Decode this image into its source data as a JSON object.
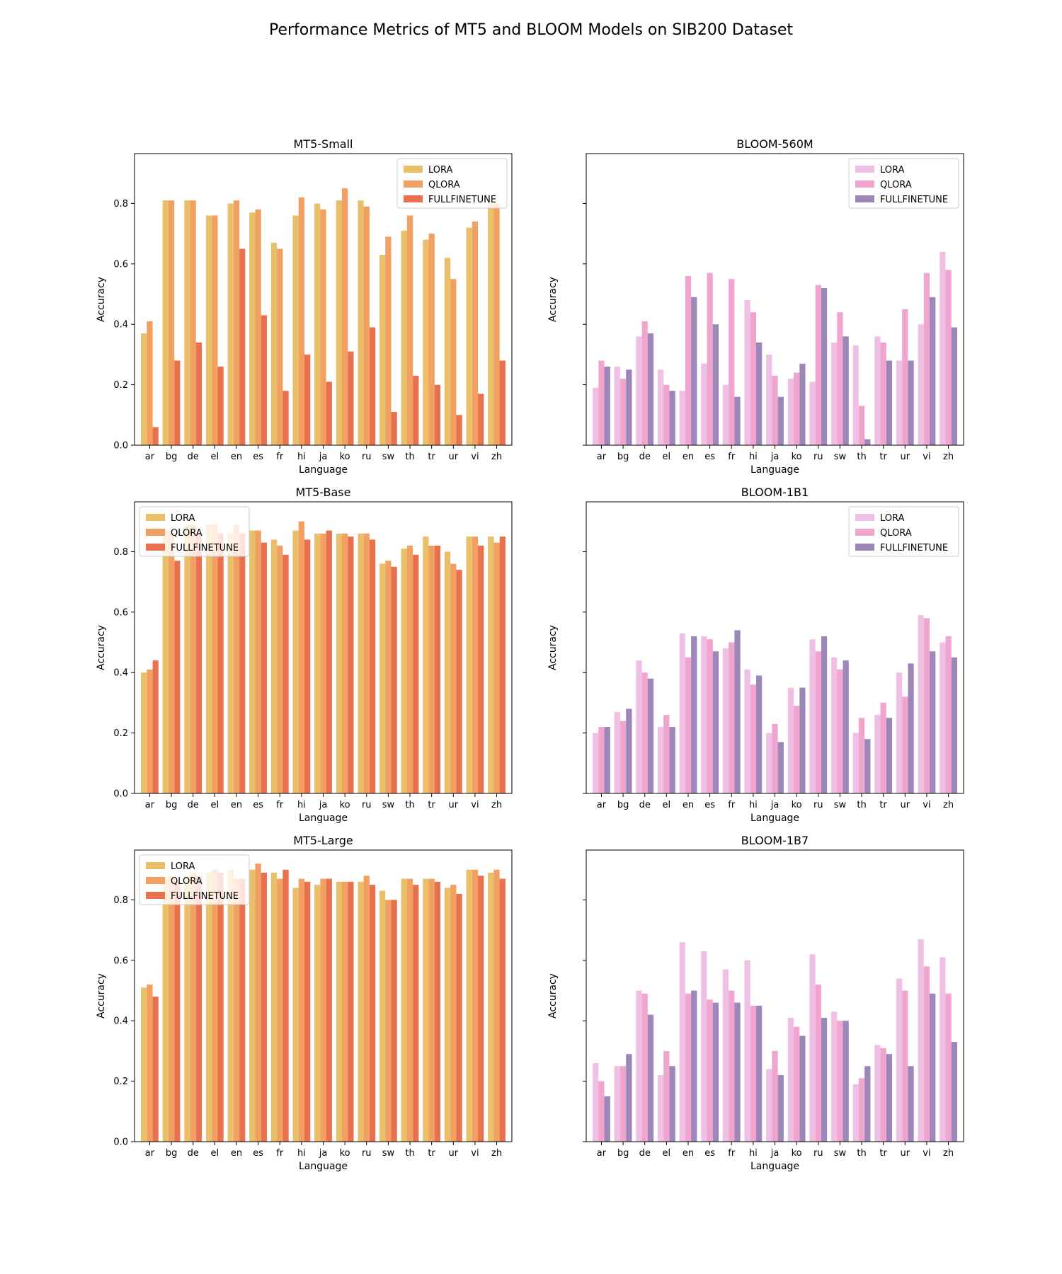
{
  "figure": {
    "title": "Performance Metrics of MT5 and BLOOM Models on SIB200 Dataset"
  },
  "chart_data": [
    {
      "type": "bar",
      "title": "MT5-Small",
      "xlabel": "Language",
      "ylabel": "Accuracy",
      "ylim": [
        0,
        0.965
      ],
      "yticks": [
        "0.0",
        "0.2",
        "0.4",
        "0.6",
        "0.8"
      ],
      "show_yticklabels": true,
      "legend_position": "upper right",
      "categories": [
        "ar",
        "bg",
        "de",
        "el",
        "en",
        "es",
        "fr",
        "hi",
        "ja",
        "ko",
        "ru",
        "sw",
        "th",
        "tr",
        "ur",
        "vi",
        "zh"
      ],
      "series": [
        {
          "name": "LORA",
          "color": "#e9bf6a",
          "values": [
            0.37,
            0.81,
            0.81,
            0.76,
            0.8,
            0.77,
            0.67,
            0.76,
            0.8,
            0.81,
            0.81,
            0.63,
            0.71,
            0.68,
            0.62,
            0.72,
            0.81
          ]
        },
        {
          "name": "QLORA",
          "color": "#f2a062",
          "values": [
            0.41,
            0.81,
            0.81,
            0.76,
            0.81,
            0.78,
            0.65,
            0.82,
            0.78,
            0.85,
            0.79,
            0.69,
            0.76,
            0.7,
            0.55,
            0.74,
            0.8
          ]
        },
        {
          "name": "FULLFINETUNE",
          "color": "#e8724f",
          "values": [
            0.06,
            0.28,
            0.34,
            0.26,
            0.65,
            0.43,
            0.18,
            0.3,
            0.21,
            0.31,
            0.39,
            0.11,
            0.23,
            0.2,
            0.1,
            0.17,
            0.28
          ]
        }
      ]
    },
    {
      "type": "bar",
      "title": "BLOOM-560M",
      "xlabel": "Language",
      "ylabel": "Accuracy",
      "ylim": [
        0,
        0.965
      ],
      "yticks": [
        "0.0",
        "0.2",
        "0.4",
        "0.6",
        "0.8"
      ],
      "show_yticklabels": false,
      "legend_position": "upper right",
      "categories": [
        "ar",
        "bg",
        "de",
        "el",
        "en",
        "es",
        "fr",
        "hi",
        "ja",
        "ko",
        "ru",
        "sw",
        "th",
        "tr",
        "ur",
        "vi",
        "zh"
      ],
      "series": [
        {
          "name": "LORA",
          "color": "#efc0e3",
          "values": [
            0.19,
            0.26,
            0.36,
            0.25,
            0.18,
            0.27,
            0.2,
            0.48,
            0.3,
            0.22,
            0.21,
            0.34,
            0.33,
            0.36,
            0.28,
            0.4,
            0.64
          ]
        },
        {
          "name": "QLORA",
          "color": "#f0a5cf",
          "values": [
            0.28,
            0.22,
            0.41,
            0.2,
            0.56,
            0.57,
            0.55,
            0.44,
            0.23,
            0.24,
            0.53,
            0.44,
            0.13,
            0.34,
            0.45,
            0.57,
            0.58
          ]
        },
        {
          "name": "FULLFINETUNE",
          "color": "#9d87b8",
          "values": [
            0.26,
            0.25,
            0.37,
            0.18,
            0.49,
            0.4,
            0.16,
            0.34,
            0.16,
            0.27,
            0.52,
            0.36,
            0.02,
            0.28,
            0.28,
            0.49,
            0.39
          ]
        }
      ]
    },
    {
      "type": "bar",
      "title": "MT5-Base",
      "xlabel": "Language",
      "ylabel": "Accuracy",
      "ylim": [
        0,
        0.965
      ],
      "yticks": [
        "0.0",
        "0.2",
        "0.4",
        "0.6",
        "0.8"
      ],
      "show_yticklabels": true,
      "legend_position": "upper left",
      "categories": [
        "ar",
        "bg",
        "de",
        "el",
        "en",
        "es",
        "fr",
        "hi",
        "ja",
        "ko",
        "ru",
        "sw",
        "th",
        "tr",
        "ur",
        "vi",
        "zh"
      ],
      "series": [
        {
          "name": "LORA",
          "color": "#e9bf6a",
          "values": [
            0.4,
            0.87,
            0.89,
            0.89,
            0.86,
            0.87,
            0.84,
            0.87,
            0.86,
            0.86,
            0.86,
            0.76,
            0.81,
            0.85,
            0.8,
            0.85,
            0.85
          ]
        },
        {
          "name": "QLORA",
          "color": "#f2a062",
          "values": [
            0.41,
            0.87,
            0.89,
            0.89,
            0.89,
            0.87,
            0.82,
            0.9,
            0.86,
            0.86,
            0.86,
            0.77,
            0.82,
            0.82,
            0.76,
            0.85,
            0.83
          ]
        },
        {
          "name": "FULLFINETUNE",
          "color": "#e8724f",
          "values": [
            0.44,
            0.77,
            0.86,
            0.86,
            0.86,
            0.83,
            0.79,
            0.84,
            0.87,
            0.85,
            0.84,
            0.75,
            0.79,
            0.82,
            0.74,
            0.82,
            0.85
          ]
        }
      ]
    },
    {
      "type": "bar",
      "title": "BLOOM-1B1",
      "xlabel": "Language",
      "ylabel": "Accuracy",
      "ylim": [
        0,
        0.965
      ],
      "yticks": [
        "0.0",
        "0.2",
        "0.4",
        "0.6",
        "0.8"
      ],
      "show_yticklabels": false,
      "legend_position": "upper right",
      "categories": [
        "ar",
        "bg",
        "de",
        "el",
        "en",
        "es",
        "fr",
        "hi",
        "ja",
        "ko",
        "ru",
        "sw",
        "th",
        "tr",
        "ur",
        "vi",
        "zh"
      ],
      "series": [
        {
          "name": "LORA",
          "color": "#efc0e3",
          "values": [
            0.2,
            0.27,
            0.44,
            0.22,
            0.53,
            0.52,
            0.48,
            0.41,
            0.2,
            0.35,
            0.51,
            0.45,
            0.2,
            0.26,
            0.4,
            0.59,
            0.5
          ]
        },
        {
          "name": "QLORA",
          "color": "#f0a5cf",
          "values": [
            0.22,
            0.24,
            0.4,
            0.26,
            0.45,
            0.51,
            0.5,
            0.36,
            0.23,
            0.29,
            0.47,
            0.41,
            0.25,
            0.3,
            0.32,
            0.58,
            0.52
          ]
        },
        {
          "name": "FULLFINETUNE",
          "color": "#9d87b8",
          "values": [
            0.22,
            0.28,
            0.38,
            0.22,
            0.52,
            0.47,
            0.54,
            0.39,
            0.17,
            0.35,
            0.52,
            0.44,
            0.18,
            0.25,
            0.43,
            0.47,
            0.45
          ]
        }
      ]
    },
    {
      "type": "bar",
      "title": "MT5-Large",
      "xlabel": "Language",
      "ylabel": "Accuracy",
      "ylim": [
        0,
        0.965
      ],
      "yticks": [
        "0.0",
        "0.2",
        "0.4",
        "0.6",
        "0.8"
      ],
      "show_yticklabels": true,
      "legend_position": "upper left",
      "categories": [
        "ar",
        "bg",
        "de",
        "el",
        "en",
        "es",
        "fr",
        "hi",
        "ja",
        "ko",
        "ru",
        "sw",
        "th",
        "tr",
        "ur",
        "vi",
        "zh"
      ],
      "series": [
        {
          "name": "LORA",
          "color": "#e9bf6a",
          "values": [
            0.51,
            0.87,
            0.88,
            0.89,
            0.9,
            0.9,
            0.89,
            0.84,
            0.85,
            0.86,
            0.86,
            0.83,
            0.87,
            0.87,
            0.84,
            0.9,
            0.89
          ]
        },
        {
          "name": "QLORA",
          "color": "#f2a062",
          "values": [
            0.52,
            0.88,
            0.89,
            0.9,
            0.87,
            0.92,
            0.87,
            0.87,
            0.87,
            0.86,
            0.88,
            0.8,
            0.87,
            0.87,
            0.85,
            0.9,
            0.9
          ]
        },
        {
          "name": "FULLFINETUNE",
          "color": "#e8724f",
          "values": [
            0.48,
            0.86,
            0.88,
            0.89,
            0.87,
            0.89,
            0.9,
            0.86,
            0.87,
            0.86,
            0.85,
            0.8,
            0.85,
            0.86,
            0.82,
            0.88,
            0.87
          ]
        }
      ]
    },
    {
      "type": "bar",
      "title": "BLOOM-1B7",
      "xlabel": "Language",
      "ylabel": "Accuracy",
      "ylim": [
        0,
        0.965
      ],
      "yticks": [
        "0.0",
        "0.2",
        "0.4",
        "0.6",
        "0.8"
      ],
      "show_yticklabels": false,
      "legend_position": "none",
      "categories": [
        "ar",
        "bg",
        "de",
        "el",
        "en",
        "es",
        "fr",
        "hi",
        "ja",
        "ko",
        "ru",
        "sw",
        "th",
        "tr",
        "ur",
        "vi",
        "zh"
      ],
      "series": [
        {
          "name": "LORA",
          "color": "#efc0e3",
          "values": [
            0.26,
            0.25,
            0.5,
            0.22,
            0.66,
            0.63,
            0.57,
            0.6,
            0.24,
            0.41,
            0.62,
            0.43,
            0.19,
            0.32,
            0.54,
            0.67,
            0.61
          ]
        },
        {
          "name": "QLORA",
          "color": "#f0a5cf",
          "values": [
            0.2,
            0.25,
            0.49,
            0.3,
            0.49,
            0.47,
            0.5,
            0.45,
            0.3,
            0.38,
            0.52,
            0.4,
            0.21,
            0.31,
            0.5,
            0.58,
            0.49
          ]
        },
        {
          "name": "FULLFINETUNE",
          "color": "#9d87b8",
          "values": [
            0.15,
            0.29,
            0.42,
            0.25,
            0.5,
            0.46,
            0.46,
            0.45,
            0.22,
            0.35,
            0.41,
            0.4,
            0.25,
            0.29,
            0.25,
            0.49,
            0.33
          ]
        }
      ]
    }
  ]
}
